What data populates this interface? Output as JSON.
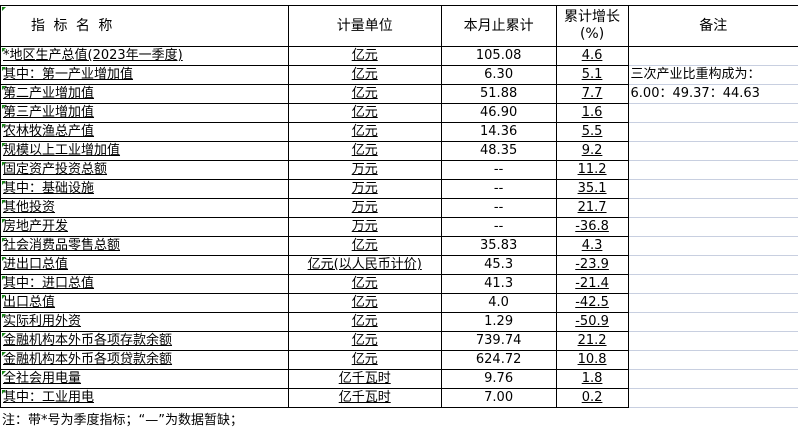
{
  "header": {
    "name": "指 标 名 称",
    "unit": "计量单位",
    "cumulative": "本月止累计",
    "growth_line1": "累计增长",
    "growth_line2": "(%)",
    "remark": "备注"
  },
  "rows": [
    {
      "name": "*地区生产总值(2023年一季度)",
      "indent": 0,
      "unit": "亿元",
      "value": "105.08",
      "growth": "4.6"
    },
    {
      "name": "其中：第一产业增加值",
      "indent": 1,
      "unit": "亿元",
      "value": "6.30",
      "growth": "5.1"
    },
    {
      "name": "第二产业增加值",
      "indent": 2,
      "unit": "亿元",
      "value": "51.88",
      "growth": "7.7"
    },
    {
      "name": "第三产业增加值",
      "indent": 2,
      "unit": "亿元",
      "value": "46.90",
      "growth": "1.6"
    },
    {
      "name": "农林牧渔总产值",
      "indent": 0,
      "unit": "亿元",
      "value": "14.36",
      "growth": "5.5"
    },
    {
      "name": "规模以上工业增加值",
      "indent": 0,
      "unit": "亿元",
      "value": "48.35",
      "growth": "9.2"
    },
    {
      "name": "固定资产投资总额",
      "indent": 0,
      "unit": "万元",
      "value": "--",
      "growth": "11.2"
    },
    {
      "name": "其中：基础设施",
      "indent": 1,
      "unit": "万元",
      "value": "--",
      "growth": "35.1"
    },
    {
      "name": "其他投资",
      "indent": 2,
      "unit": "万元",
      "value": "--",
      "growth": "21.7"
    },
    {
      "name": "房地产开发",
      "indent": 2,
      "unit": "万元",
      "value": "--",
      "growth": "-36.8"
    },
    {
      "name": "社会消费品零售总额",
      "indent": 0,
      "unit": "亿元",
      "value": "35.83",
      "growth": "4.3"
    },
    {
      "name": "进出口总值",
      "indent": 0,
      "unit": "亿元(以人民币计价)",
      "value": "45.3",
      "growth": "-23.9"
    },
    {
      "name": "其中：进口总值",
      "indent": 1,
      "unit": "亿元",
      "value": "41.3",
      "growth": "-21.4"
    },
    {
      "name": "出口总值",
      "indent": 2,
      "unit": "亿元",
      "value": "4.0",
      "growth": "-42.5"
    },
    {
      "name": "实际利用外资",
      "indent": 0,
      "unit": "亿元",
      "value": "1.29",
      "growth": "-50.9"
    },
    {
      "name": "金融机构本外币各项存款余额",
      "indent": 0,
      "unit": "亿元",
      "value": "739.74",
      "growth": "21.2"
    },
    {
      "name": "金融机构本外币各项贷款余额",
      "indent": 0,
      "unit": "亿元",
      "value": "624.72",
      "growth": "10.8"
    },
    {
      "name": "全社会用电量",
      "indent": 0,
      "unit": "亿千瓦时",
      "value": "9.76",
      "growth": "1.8"
    },
    {
      "name": "其中：工业用电",
      "indent": 1,
      "unit": "亿千瓦时",
      "value": "7.00",
      "growth": "0.2"
    }
  ],
  "remarks": {
    "line1": "三次产业比重构成为：",
    "line2": "6.00：49.37：44.63"
  },
  "footnote": "注：带*号为季度指标；“—”为数据暂缺；"
}
